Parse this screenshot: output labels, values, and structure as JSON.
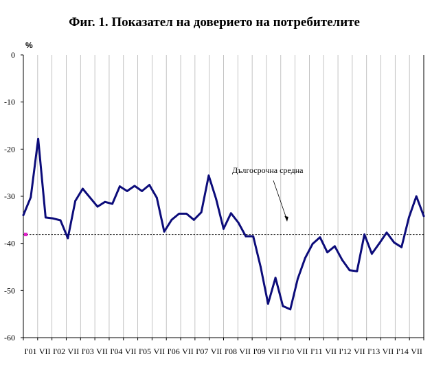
{
  "chart_data": {
    "type": "line",
    "title": "Фиг. 1. Показател на доверието на потребителите",
    "ylabel": "%",
    "xlabel": "",
    "ylim": [
      -60,
      0
    ],
    "yticks": [
      0,
      -10,
      -20,
      -30,
      -40,
      -50,
      -60
    ],
    "x_tick_labels": [
      "I'01",
      "VII",
      "I'02",
      "VII",
      "I'03",
      "VII",
      "I'04",
      "VII",
      "I'05",
      "VII",
      "I'06",
      "VII",
      "I'07",
      "VII",
      "I'08",
      "VII",
      "I'09",
      "VII",
      "I'10",
      "VII",
      "I'11",
      "VII",
      "I'12",
      "VII",
      "I'13",
      "VII",
      "I'14",
      "VII"
    ],
    "grid": "vertical",
    "series": [
      {
        "values": [
          -34.0,
          -30.2,
          -17.8,
          -34.5,
          -34.7,
          -35.1,
          -38.9,
          -31.0,
          -28.4,
          -30.3,
          -32.2,
          -31.2,
          -31.6,
          -27.9,
          -28.9,
          -27.8,
          -28.9,
          -27.6,
          -30.3,
          -37.5,
          -35.0,
          -33.7,
          -33.7,
          -35.0,
          -33.4,
          -25.6,
          -30.6,
          -36.9,
          -33.6,
          -35.6,
          -38.5,
          -38.5,
          -45.0,
          -52.8,
          -47.3,
          -53.3,
          -54.0,
          -47.5,
          -43.1,
          -40.1,
          -38.7,
          -41.9,
          -40.6,
          -43.5,
          -45.7,
          -45.9,
          -38.1,
          -42.2,
          -40.0,
          -37.7,
          -39.8,
          -40.8,
          -34.5,
          -30.0,
          -34.2
        ],
        "color": "#0c0c7a"
      }
    ],
    "reference_line": {
      "label": "Дългосрочна средна",
      "value": -38.1,
      "color": "#000000"
    }
  }
}
